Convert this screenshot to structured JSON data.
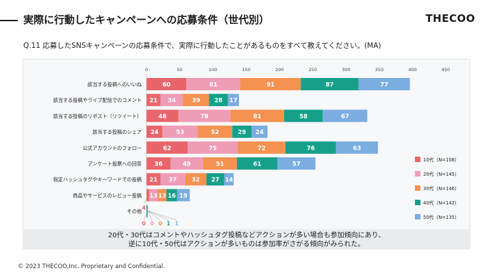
{
  "header": {
    "title": "実際に行動したキャンペーンへの応募条件（世代別）",
    "logo": "THECOO"
  },
  "question": "Q.11 応募したSNSキャンペーンの応募条件で、実際に行動したことがあるものをすべて教えてください。(MA)",
  "chart_data": {
    "type": "bar",
    "orientation": "horizontal",
    "stacked": true,
    "title": "",
    "xlim": [
      0,
      450
    ],
    "x_ticks": [
      0,
      50,
      100,
      150,
      200,
      250,
      300,
      350,
      400,
      450
    ],
    "categories": [
      "該当する投稿へのいいね",
      "該当する投稿やライブ配信でのコメント",
      "該当する投稿のリポスト（リツイート）",
      "該当する投稿のシェア",
      "公式アカウントのフォロー",
      "アンケート投票への回答",
      "指定ハッシュタグやキーワードでの投稿",
      "商品やサービスのレビュー投稿",
      "その他"
    ],
    "series": [
      {
        "name": "10代（N=108）",
        "color": "#e8666b",
        "values": [
          60,
          21,
          48,
          24,
          62,
          36,
          21,
          4,
          0
        ]
      },
      {
        "name": "20代（N=145）",
        "color": "#ef9cb7",
        "values": [
          81,
          34,
          78,
          53,
          75,
          49,
          37,
          13,
          0
        ]
      },
      {
        "name": "30代（N=146）",
        "color": "#f5924f",
        "values": [
          91,
          39,
          81,
          52,
          72,
          51,
          32,
          13,
          0
        ]
      },
      {
        "name": "40代（N=142）",
        "color": "#16a08a",
        "values": [
          87,
          28,
          58,
          29,
          76,
          61,
          27,
          16,
          1
        ]
      },
      {
        "name": "50代（N=135）",
        "color": "#7cade0",
        "values": [
          77,
          17,
          67,
          24,
          63,
          57,
          14,
          19,
          1
        ]
      }
    ]
  },
  "summary": {
    "line1": "20代・30代はコメントやハッシュタグ投稿などアクションが多い場合も参加傾向にあり、",
    "line2": "逆に10代・50代はアクションが多いものは参加率がさがる傾向がみられた。"
  },
  "footer": "© 2023 THECOO,Inc. Proprietary and Confidential."
}
